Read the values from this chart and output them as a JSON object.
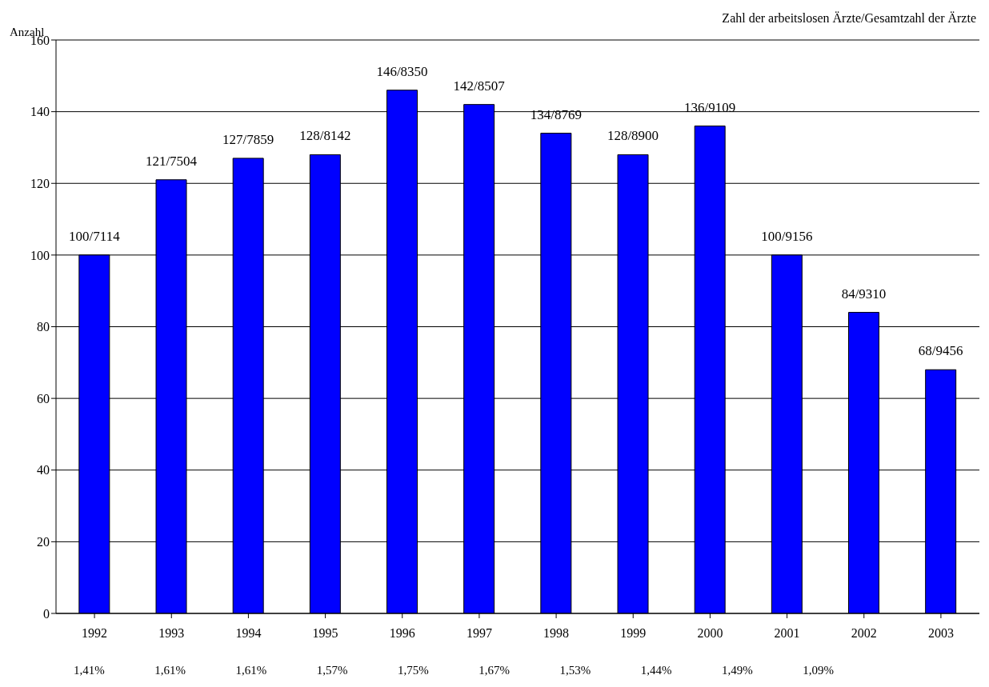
{
  "chart_data": {
    "type": "bar",
    "subtitle": "Zahl der arbeitslosen Ärzte/Gesamtzahl der Ärzte",
    "ylabel": "Anzahl",
    "categories": [
      "1992",
      "1993",
      "1994",
      "1995",
      "1996",
      "1997",
      "1998",
      "1999",
      "2000",
      "2001",
      "2002",
      "2003"
    ],
    "values": [
      100,
      121,
      127,
      128,
      146,
      142,
      134,
      128,
      136,
      100,
      84,
      68
    ],
    "value_labels": [
      "100/7114",
      "121/7504",
      "127/7859",
      "128/8142",
      "146/8350",
      "142/8507",
      "134/8769",
      "128/8900",
      "136/9109",
      "100/9156",
      "84/9310",
      "68/9456"
    ],
    "color": "#0000ff",
    "ylim": [
      0,
      160
    ],
    "yticks": [
      0,
      20,
      40,
      60,
      80,
      100,
      120,
      140,
      160
    ],
    "grid": "y",
    "annotations": [
      "1,41%",
      "1,61%",
      "1,61%",
      "1,57%",
      "1,75%",
      "1,67%",
      "1,53%",
      "1,44%",
      "1,49%",
      "1,09%"
    ]
  }
}
